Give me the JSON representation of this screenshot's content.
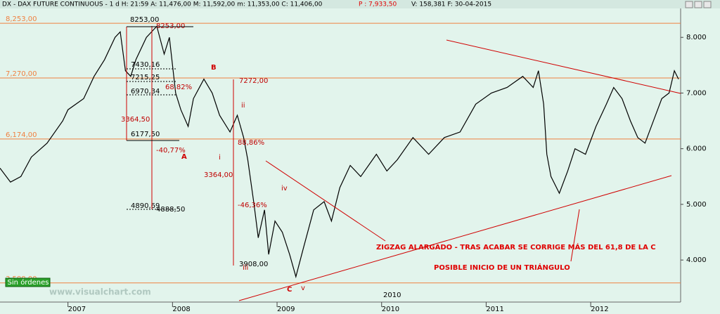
{
  "chart_data": {
    "type": "line",
    "header": [
      "DX - DAX FUTURE CONTINUOUS -  1 d H: 21:59 A: 11,476,00 M: 11,592,00 m: 11,353,00 C: 11,406,00",
      "P : 7,933,50",
      "V: 158,381 F: 30-04-2015"
    ],
    "x": [
      2006.35,
      2006.45,
      2006.55,
      2006.65,
      2006.8,
      2006.95,
      2007.0,
      2007.15,
      2007.25,
      2007.35,
      2007.45,
      2007.5,
      2007.55,
      2007.6,
      2007.65,
      2007.75,
      2007.85,
      2007.92,
      2007.97,
      2008.03,
      2008.08,
      2008.15,
      2008.2,
      2008.3,
      2008.38,
      2008.45,
      2008.55,
      2008.62,
      2008.68,
      2008.72,
      2008.78,
      2008.82,
      2008.88,
      2008.92,
      2008.98,
      2009.05,
      2009.12,
      2009.18,
      2009.25,
      2009.35,
      2009.45,
      2009.52,
      2009.6,
      2009.7,
      2009.8,
      2009.95,
      2010.05,
      2010.15,
      2010.3,
      2010.45,
      2010.6,
      2010.75,
      2010.9,
      2011.05,
      2011.2,
      2011.35,
      2011.45,
      2011.5,
      2011.55,
      2011.58,
      2011.62,
      2011.7,
      2011.78,
      2011.85,
      2011.95,
      2012.05,
      2012.15,
      2012.22,
      2012.3,
      2012.38,
      2012.45,
      2012.52,
      2012.6,
      2012.68,
      2012.75,
      2012.8,
      2012.84
    ],
    "series": [
      {
        "name": "DAX",
        "color": "#000000",
        "values": [
          5650,
          5400,
          5500,
          5850,
          6100,
          6500,
          6700,
          6900,
          7300,
          7600,
          8000,
          8100,
          7400,
          7300,
          7600,
          8000,
          8200,
          7700,
          8000,
          7000,
          6700,
          6400,
          6900,
          7250,
          7000,
          6600,
          6300,
          6600,
          6200,
          5800,
          5000,
          4400,
          4900,
          4100,
          4700,
          4500,
          4100,
          3700,
          4200,
          4900,
          5050,
          4700,
          5300,
          5700,
          5500,
          5900,
          5600,
          5800,
          6200,
          5900,
          6200,
          6300,
          6800,
          7000,
          7100,
          7300,
          7100,
          7400,
          6800,
          5900,
          5500,
          5200,
          5600,
          6000,
          5900,
          6400,
          6800,
          7100,
          6900,
          6500,
          6200,
          6100,
          6500,
          6900,
          7000,
          7400,
          7250
        ]
      }
    ],
    "xlim": [
      2006.35,
      2012.86
    ],
    "xticks": [
      2007,
      2008,
      2009,
      2010,
      2011,
      2012
    ],
    "ylim": [
      3270,
      8520
    ],
    "yticks": [
      {
        "value": 4000,
        "label": "4.000"
      },
      {
        "value": 5000,
        "label": "5.000"
      },
      {
        "value": 6000,
        "label": "6.000"
      },
      {
        "value": 7000,
        "label": "7.000"
      },
      {
        "value": 8000,
        "label": "8.000"
      }
    ],
    "hlines": [
      {
        "value": 8253,
        "label": "8,253,00"
      },
      {
        "value": 7270,
        "label": "7,270,00"
      },
      {
        "value": 6174,
        "label": "6,174,00"
      },
      {
        "value": 3588,
        "label": "3,588,00"
      }
    ],
    "hline_color": "#f08040",
    "annotations": [
      "8253,00",
      "8253,00",
      "7430,16",
      "7215,25",
      "6970,34",
      "68,82%",
      "3364,50",
      "6177,50",
      "-40,77%",
      "A",
      "B",
      "7272,00",
      "ii",
      "i",
      "88,86%",
      "3364,00",
      "iv",
      "-46,36%",
      "4890,69",
      "4888,50",
      "3908,00",
      "iii",
      "C",
      "v",
      "2010",
      "ZIGZAG ALARGADO - TRAS ACABAR SE CORRIGE MÁS DEL 61,8 DE LA C",
      "POSIBLE INICIO DE UN TRIÁNGULO"
    ],
    "button": "Sin órdenes",
    "watermark": "www.visualchart.com"
  }
}
